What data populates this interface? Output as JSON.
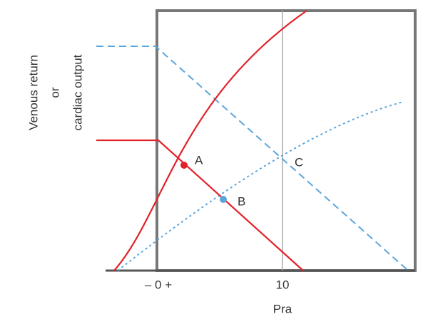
{
  "y_axis_label": {
    "line1": "Venous return",
    "line2": "or",
    "line3": "cardiac output"
  },
  "x_axis_label": "Pra",
  "x_tick_labels": [
    "– 0 +",
    "10"
  ],
  "points": {
    "a": "A",
    "b": "B",
    "c": "C"
  }
}
